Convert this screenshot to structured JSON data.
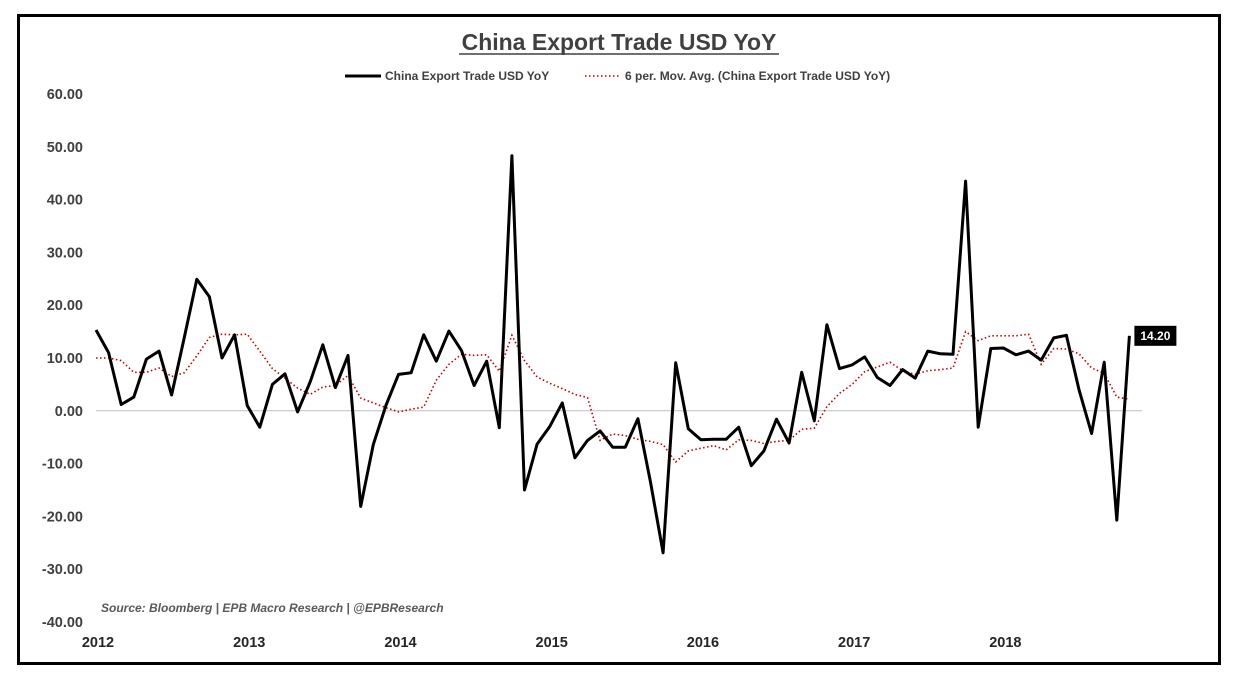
{
  "chart_data": {
    "type": "line",
    "title": "China Export Trade USD YoY",
    "source": "Source: Bloomberg | EPB Macro Research | @EPBResearch",
    "ylim": [
      -40,
      60
    ],
    "yticks": [
      60,
      50,
      40,
      30,
      20,
      10,
      0,
      -10,
      -20,
      -30,
      -40
    ],
    "ytick_labels": [
      "60.00",
      "50.00",
      "40.00",
      "30.00",
      "20.00",
      "10.00",
      "0.00",
      "-10.00",
      "-20.00",
      "-30.00",
      "-40.00"
    ],
    "x_start": "2012-01",
    "x_end": "2018-12",
    "xtick_labels": [
      "2012",
      "2013",
      "2014",
      "2015",
      "2016",
      "2017",
      "2018"
    ],
    "grid": false,
    "legend_position": "top",
    "series": [
      {
        "name": "China Export Trade USD YoY",
        "color": "#000000",
        "style": "solid",
        "dates": [
          "2012-01",
          "2012-02",
          "2012-03",
          "2012-04",
          "2012-05",
          "2012-06",
          "2012-07",
          "2012-08",
          "2012-09",
          "2012-10",
          "2012-11",
          "2012-12",
          "2013-01",
          "2013-02",
          "2013-03",
          "2013-04",
          "2013-05",
          "2013-06",
          "2013-07",
          "2013-08",
          "2013-09",
          "2013-10",
          "2013-11",
          "2013-12",
          "2014-01",
          "2014-02",
          "2014-03",
          "2014-04",
          "2014-05",
          "2014-06",
          "2014-07",
          "2014-08",
          "2014-09",
          "2014-10",
          "2014-11",
          "2014-12",
          "2015-01",
          "2015-02",
          "2015-03",
          "2015-04",
          "2015-05",
          "2015-06",
          "2015-07",
          "2015-08",
          "2015-09",
          "2015-10",
          "2015-11",
          "2015-12",
          "2016-01",
          "2016-02",
          "2016-03",
          "2016-04",
          "2016-05",
          "2016-06",
          "2016-07",
          "2016-08",
          "2016-09",
          "2016-10",
          "2016-11",
          "2016-12",
          "2017-01",
          "2017-02",
          "2017-03",
          "2017-04",
          "2017-05",
          "2017-06",
          "2017-07",
          "2017-08",
          "2017-09",
          "2017-10",
          "2017-11",
          "2017-12",
          "2018-01",
          "2018-02",
          "2018-03",
          "2018-04",
          "2018-05",
          "2018-06",
          "2018-07",
          "2018-08",
          "2018-09",
          "2018-10",
          "2018-11"
        ],
        "values": [
          15.3,
          11.0,
          1.2,
          2.6,
          9.8,
          11.3,
          3.0,
          13.8,
          24.9,
          21.6,
          10.0,
          14.4,
          1.0,
          -3.1,
          5.0,
          7.0,
          -0.2,
          5.5,
          12.5,
          4.4,
          10.5,
          -18.1,
          -6.4,
          1.0,
          6.9,
          7.2,
          14.4,
          9.4,
          15.1,
          11.4,
          4.8,
          9.4,
          -3.2,
          48.3,
          -15.0,
          -6.3,
          -3.0,
          1.5,
          -8.9,
          -5.6,
          -3.8,
          -6.9,
          -6.9,
          -1.5,
          -13.5,
          -26.9,
          9.1,
          -3.4,
          -5.5,
          -5.4,
          -5.4,
          -3.1,
          -10.4,
          -7.6,
          -1.6,
          -6.1,
          7.3,
          -1.9,
          16.3,
          8.0,
          8.7,
          10.2,
          6.3,
          4.8,
          7.8,
          6.2,
          11.3,
          10.8,
          10.7,
          43.5,
          -3.1,
          11.8,
          11.9,
          10.6,
          11.3,
          9.6,
          13.8,
          14.3,
          4.0,
          -4.3,
          9.2,
          -20.7,
          14.2
        ]
      },
      {
        "name": "6 per. Mov. Avg. (China Export Trade USD YoY)",
        "color": "#c00000",
        "style": "dotted",
        "dates": [
          "2012-01",
          "2012-02",
          "2012-03",
          "2012-04",
          "2012-05",
          "2012-06",
          "2012-07",
          "2012-08",
          "2012-09",
          "2012-10",
          "2012-11",
          "2012-12",
          "2013-01",
          "2013-02",
          "2013-03",
          "2013-04",
          "2013-05",
          "2013-06",
          "2013-07",
          "2013-08",
          "2013-09",
          "2013-10",
          "2013-11",
          "2013-12",
          "2014-01",
          "2014-02",
          "2014-03",
          "2014-04",
          "2014-05",
          "2014-06",
          "2014-07",
          "2014-08",
          "2014-09",
          "2014-10",
          "2014-11",
          "2014-12",
          "2015-01",
          "2015-02",
          "2015-03",
          "2015-04",
          "2015-05",
          "2015-06",
          "2015-07",
          "2015-08",
          "2015-09",
          "2015-10",
          "2015-11",
          "2015-12",
          "2016-01",
          "2016-02",
          "2016-03",
          "2016-04",
          "2016-05",
          "2016-06",
          "2016-07",
          "2016-08",
          "2016-09",
          "2016-10",
          "2016-11",
          "2016-12",
          "2017-01",
          "2017-02",
          "2017-03",
          "2017-04",
          "2017-05",
          "2017-06",
          "2017-07",
          "2017-08",
          "2017-09",
          "2017-10",
          "2017-11",
          "2017-12",
          "2018-01",
          "2018-02",
          "2018-03",
          "2018-04",
          "2018-05",
          "2018-06",
          "2018-07",
          "2018-08",
          "2018-09",
          "2018-10",
          "2018-11"
        ],
        "values": [
          10.0,
          10.0,
          9.5,
          7.3,
          7.3,
          8.1,
          6.5,
          7.2,
          10.4,
          13.9,
          14.5,
          14.4,
          14.5,
          11.3,
          8.0,
          6.2,
          4.3,
          3.1,
          4.5,
          4.8,
          6.7,
          2.4,
          1.5,
          0.6,
          -0.2,
          0.3,
          0.7,
          5.8,
          8.8,
          10.7,
          10.5,
          10.6,
          7.5,
          14.3,
          9.5,
          6.4,
          5.2,
          4.2,
          3.1,
          2.5,
          -5.6,
          -4.4,
          -4.7,
          -5.4,
          -5.8,
          -6.4,
          -9.7,
          -7.6,
          -7.1,
          -6.6,
          -7.4,
          -5.5,
          -5.6,
          -6.2,
          -5.8,
          -5.6,
          -3.5,
          -3.3,
          0.8,
          3.3,
          5.0,
          7.4,
          8.3,
          9.2,
          7.6,
          6.9,
          7.6,
          7.8,
          8.1,
          15.0,
          13.3,
          14.2,
          14.2,
          14.2,
          14.5,
          8.8,
          11.8,
          11.7,
          10.8,
          8.1,
          7.1,
          2.6,
          2.2
        ]
      }
    ],
    "last_value_label": "14.20"
  }
}
